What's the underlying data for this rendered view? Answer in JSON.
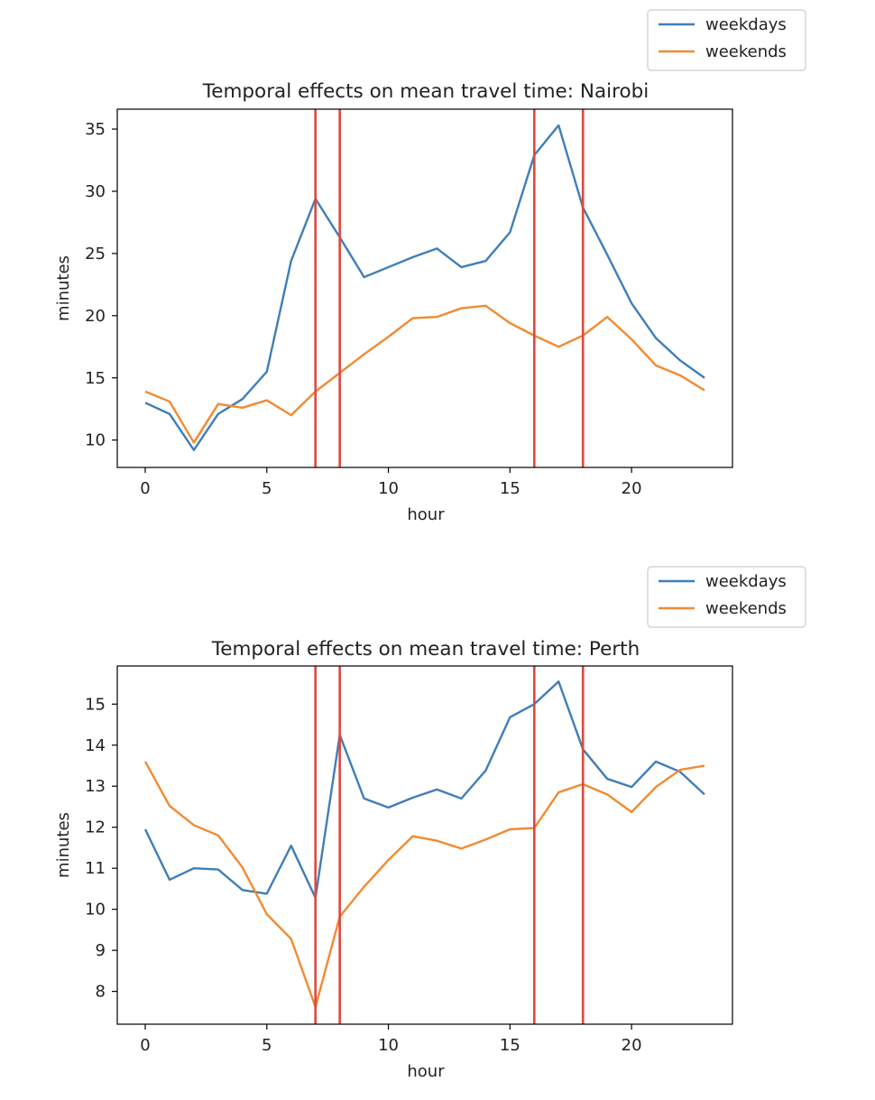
{
  "colors": {
    "weekdays": "#3f7eb8",
    "weekends": "#f28a30",
    "marker": "#e0483e"
  },
  "chart_data": [
    {
      "type": "line",
      "title": "Temporal effects on mean travel time: Nairobi",
      "xlabel": "hour",
      "ylabel": "minutes",
      "xlim": [
        -1.15,
        24.15
      ],
      "ylim": [
        7.8,
        36.6
      ],
      "xticks": [
        0,
        5,
        10,
        15,
        20
      ],
      "yticks": [
        10,
        15,
        20,
        25,
        30,
        35
      ],
      "grid": false,
      "legend": "top-right, above plot",
      "vlines": [
        7,
        8,
        16,
        18
      ],
      "x": [
        0,
        1,
        2,
        3,
        4,
        5,
        6,
        7,
        8,
        9,
        10,
        11,
        12,
        13,
        14,
        15,
        16,
        17,
        18,
        19,
        20,
        21,
        22,
        23
      ],
      "series": [
        {
          "name": "weekdays",
          "values": [
            13.0,
            12.1,
            9.2,
            12.1,
            13.3,
            15.5,
            24.4,
            29.4,
            26.3,
            23.1,
            23.9,
            24.7,
            25.4,
            23.9,
            24.4,
            26.7,
            32.9,
            35.3,
            28.7,
            24.9,
            21.0,
            18.2,
            16.4,
            15.0
          ]
        },
        {
          "name": "weekends",
          "values": [
            13.9,
            13.1,
            9.8,
            12.9,
            12.6,
            13.2,
            12.0,
            13.9,
            15.4,
            16.9,
            18.3,
            19.8,
            19.9,
            20.6,
            20.8,
            19.4,
            18.4,
            17.5,
            18.4,
            19.9,
            18.1,
            16.0,
            15.2,
            14.0
          ]
        }
      ]
    },
    {
      "type": "line",
      "title": "Temporal effects on mean travel time: Perth",
      "xlabel": "hour",
      "ylabel": "minutes",
      "xlim": [
        -1.15,
        24.15
      ],
      "ylim": [
        7.2,
        15.93
      ],
      "xticks": [
        0,
        5,
        10,
        15,
        20
      ],
      "yticks": [
        8,
        9,
        10,
        11,
        12,
        13,
        14,
        15
      ],
      "grid": false,
      "legend": "top-right, above plot",
      "vlines": [
        7,
        8,
        16,
        18
      ],
      "x": [
        0,
        1,
        2,
        3,
        4,
        5,
        6,
        7,
        8,
        9,
        10,
        11,
        12,
        13,
        14,
        15,
        16,
        17,
        18,
        19,
        20,
        21,
        22,
        23
      ],
      "series": [
        {
          "name": "weekdays",
          "values": [
            11.95,
            10.72,
            11.0,
            10.97,
            10.47,
            10.38,
            11.55,
            10.28,
            14.25,
            12.7,
            12.48,
            12.72,
            12.92,
            12.7,
            13.38,
            14.68,
            15.0,
            15.55,
            13.9,
            13.18,
            12.98,
            13.6,
            13.35,
            12.8
          ]
        },
        {
          "name": "weekends",
          "values": [
            13.6,
            12.52,
            12.05,
            11.8,
            11.02,
            9.88,
            9.28,
            7.62,
            9.82,
            10.55,
            11.2,
            11.78,
            11.67,
            11.48,
            11.7,
            11.95,
            11.98,
            12.85,
            13.05,
            12.8,
            12.37,
            12.98,
            13.4,
            13.5
          ]
        }
      ]
    }
  ]
}
